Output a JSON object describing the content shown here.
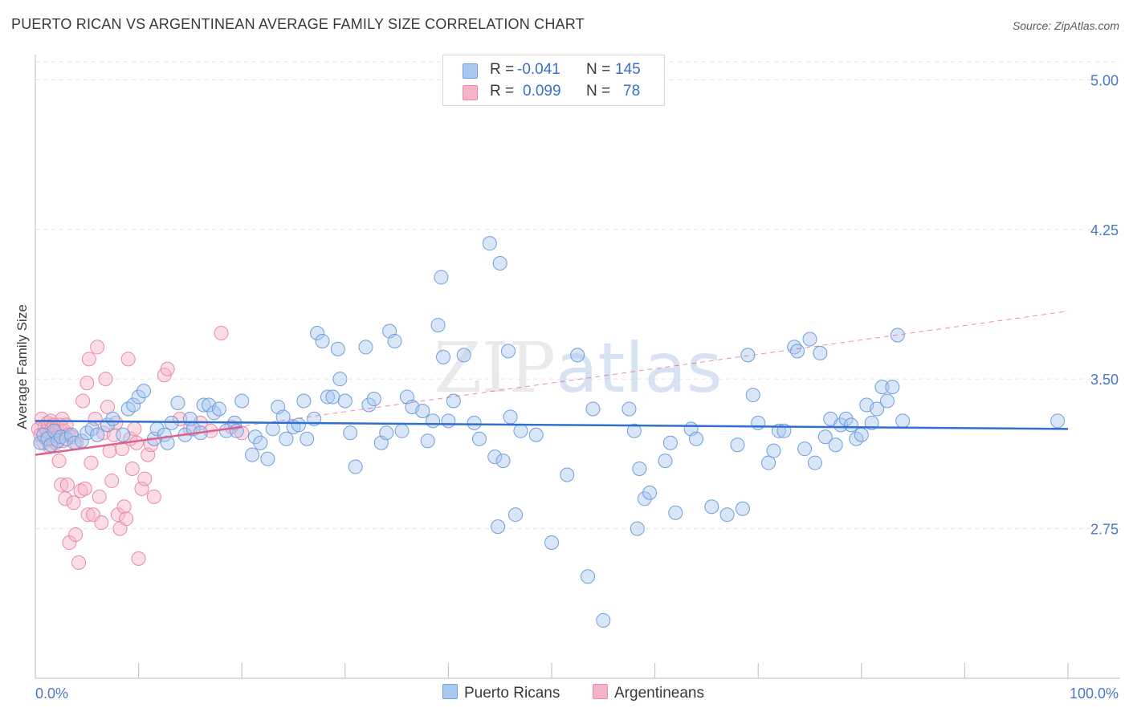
{
  "title": "PUERTO RICAN VS ARGENTINEAN AVERAGE FAMILY SIZE CORRELATION CHART",
  "source": "Source: ZipAtlas.com",
  "watermark": "ZIPatlas",
  "colors": {
    "blue_fill": "#a9c7ef",
    "blue_stroke": "#6f9fdc",
    "blue_line": "#2f6fd1",
    "pink_fill": "#f6b3c8",
    "pink_stroke": "#e88aa9",
    "pink_line": "#e0608c",
    "axis_text": "#4a78c8",
    "grid": "#e3e3e3"
  },
  "legend_top": {
    "rows": [
      {
        "series": "Puerto Ricans",
        "r_label": "R =",
        "r_value": "-0.041",
        "n_label": "N =",
        "n_value": "145"
      },
      {
        "series": "Argentineans",
        "r_label": "R =",
        "r_value": "0.099",
        "n_label": "N =",
        "n_value": "78"
      }
    ]
  },
  "legend_bottom": [
    "Puerto Ricans",
    "Argentineans"
  ],
  "chart_data": {
    "type": "scatter",
    "title": "PUERTO RICAN VS ARGENTINEAN AVERAGE FAMILY SIZE CORRELATION CHART",
    "xlabel": "",
    "ylabel": "Average Family Size",
    "xlim": [
      0,
      100
    ],
    "ylim": [
      2.0,
      5.09
    ],
    "x_tick_labels": [
      "0.0%",
      "100.0%"
    ],
    "y_ticks": [
      2.75,
      3.5,
      4.25,
      5.0
    ],
    "y_tick_labels": [
      "2.75",
      "3.50",
      "4.25",
      "5.00"
    ],
    "grid": true,
    "series": [
      {
        "name": "Puerto Ricans",
        "r": -0.041,
        "n": 145,
        "trend": {
          "x": [
            0,
            100
          ],
          "y": [
            3.29,
            3.25
          ]
        },
        "points": [
          [
            0.5,
            3.18
          ],
          [
            0.8,
            3.22
          ],
          [
            1.2,
            3.2
          ],
          [
            1.5,
            3.17
          ],
          [
            1.8,
            3.24
          ],
          [
            2.2,
            3.19
          ],
          [
            2.5,
            3.21
          ],
          [
            3.0,
            3.2
          ],
          [
            3.5,
            3.22
          ],
          [
            3.8,
            3.18
          ],
          [
            4.5,
            3.19
          ],
          [
            5.0,
            3.23
          ],
          [
            5.5,
            3.25
          ],
          [
            6.0,
            3.22
          ],
          [
            7.0,
            3.27
          ],
          [
            7.5,
            3.3
          ],
          [
            8.5,
            3.22
          ],
          [
            9.0,
            3.35
          ],
          [
            9.5,
            3.37
          ],
          [
            10.0,
            3.41
          ],
          [
            10.5,
            3.44
          ],
          [
            11.5,
            3.2
          ],
          [
            11.8,
            3.25
          ],
          [
            12.5,
            3.22
          ],
          [
            12.8,
            3.18
          ],
          [
            13.2,
            3.28
          ],
          [
            13.8,
            3.38
          ],
          [
            14.5,
            3.22
          ],
          [
            15.0,
            3.3
          ],
          [
            15.3,
            3.25
          ],
          [
            16.0,
            3.23
          ],
          [
            16.3,
            3.37
          ],
          [
            16.8,
            3.37
          ],
          [
            17.3,
            3.33
          ],
          [
            17.8,
            3.35
          ],
          [
            18.5,
            3.24
          ],
          [
            19.3,
            3.28
          ],
          [
            19.5,
            3.24
          ],
          [
            20.0,
            3.39
          ],
          [
            21.0,
            3.12
          ],
          [
            21.3,
            3.21
          ],
          [
            21.8,
            3.18
          ],
          [
            22.5,
            3.1
          ],
          [
            23.0,
            3.25
          ],
          [
            23.5,
            3.36
          ],
          [
            24.0,
            3.31
          ],
          [
            24.3,
            3.2
          ],
          [
            25.0,
            3.26
          ],
          [
            25.5,
            3.27
          ],
          [
            26.0,
            3.39
          ],
          [
            26.3,
            3.2
          ],
          [
            27.0,
            3.3
          ],
          [
            27.3,
            3.73
          ],
          [
            27.8,
            3.69
          ],
          [
            28.3,
            3.41
          ],
          [
            28.8,
            3.41
          ],
          [
            29.3,
            3.65
          ],
          [
            29.5,
            3.5
          ],
          [
            30.0,
            3.39
          ],
          [
            30.5,
            3.23
          ],
          [
            31.0,
            3.06
          ],
          [
            32.0,
            3.66
          ],
          [
            32.3,
            3.37
          ],
          [
            32.8,
            3.4
          ],
          [
            33.5,
            3.18
          ],
          [
            34.0,
            3.23
          ],
          [
            34.3,
            3.74
          ],
          [
            34.8,
            3.69
          ],
          [
            35.5,
            3.24
          ],
          [
            36.0,
            3.41
          ],
          [
            36.5,
            3.36
          ],
          [
            37.5,
            3.34
          ],
          [
            38.0,
            3.19
          ],
          [
            38.5,
            3.29
          ],
          [
            39.0,
            3.77
          ],
          [
            39.3,
            4.01
          ],
          [
            39.5,
            3.61
          ],
          [
            40.0,
            3.29
          ],
          [
            40.5,
            3.39
          ],
          [
            41.5,
            3.62
          ],
          [
            42.5,
            3.28
          ],
          [
            43.0,
            3.2
          ],
          [
            44.0,
            4.18
          ],
          [
            44.5,
            3.11
          ],
          [
            44.8,
            2.76
          ],
          [
            45.0,
            4.08
          ],
          [
            45.3,
            3.09
          ],
          [
            45.8,
            3.64
          ],
          [
            46.0,
            3.31
          ],
          [
            46.5,
            2.82
          ],
          [
            47.0,
            3.24
          ],
          [
            48.5,
            3.22
          ],
          [
            50.0,
            2.68
          ],
          [
            51.5,
            3.02
          ],
          [
            52.5,
            3.62
          ],
          [
            53.5,
            2.51
          ],
          [
            54.0,
            3.35
          ],
          [
            55.0,
            2.29
          ],
          [
            57.5,
            3.35
          ],
          [
            58.0,
            3.24
          ],
          [
            58.3,
            2.75
          ],
          [
            58.5,
            3.05
          ],
          [
            59.0,
            2.9
          ],
          [
            59.5,
            2.93
          ],
          [
            61.0,
            3.09
          ],
          [
            61.5,
            3.18
          ],
          [
            62.0,
            2.83
          ],
          [
            63.5,
            3.25
          ],
          [
            64.0,
            3.2
          ],
          [
            65.5,
            2.86
          ],
          [
            67.0,
            2.82
          ],
          [
            68.0,
            3.17
          ],
          [
            68.5,
            2.85
          ],
          [
            69.0,
            3.62
          ],
          [
            69.5,
            3.42
          ],
          [
            70.0,
            3.28
          ],
          [
            71.0,
            3.08
          ],
          [
            71.5,
            3.14
          ],
          [
            72.0,
            3.24
          ],
          [
            72.5,
            3.24
          ],
          [
            73.5,
            3.66
          ],
          [
            73.8,
            3.64
          ],
          [
            74.5,
            3.15
          ],
          [
            75.0,
            3.7
          ],
          [
            75.5,
            3.08
          ],
          [
            76.0,
            3.63
          ],
          [
            76.5,
            3.21
          ],
          [
            77.0,
            3.3
          ],
          [
            77.5,
            3.17
          ],
          [
            78.0,
            3.27
          ],
          [
            78.5,
            3.3
          ],
          [
            79.0,
            3.27
          ],
          [
            79.5,
            3.2
          ],
          [
            80.0,
            3.22
          ],
          [
            80.5,
            3.37
          ],
          [
            81.0,
            3.28
          ],
          [
            81.5,
            3.35
          ],
          [
            82.0,
            3.46
          ],
          [
            82.5,
            3.39
          ],
          [
            83.0,
            3.46
          ],
          [
            83.5,
            3.72
          ],
          [
            84.0,
            3.29
          ],
          [
            99.0,
            3.29
          ]
        ]
      },
      {
        "name": "Argentineans",
        "r": 0.099,
        "n": 78,
        "trend": {
          "x": [
            0,
            20
          ],
          "y": [
            3.12,
            3.26
          ]
        },
        "trend_extended": {
          "x": [
            0,
            100
          ],
          "y": [
            3.12,
            3.84
          ]
        },
        "points": [
          [
            0.3,
            3.25
          ],
          [
            0.5,
            3.22
          ],
          [
            0.6,
            3.3
          ],
          [
            0.8,
            3.18
          ],
          [
            0.9,
            3.26
          ],
          [
            1.0,
            3.2
          ],
          [
            1.1,
            3.24
          ],
          [
            1.2,
            3.28
          ],
          [
            1.3,
            3.22
          ],
          [
            1.4,
            3.16
          ],
          [
            1.5,
            3.29
          ],
          [
            1.6,
            3.25
          ],
          [
            1.7,
            3.2
          ],
          [
            1.8,
            3.27
          ],
          [
            1.9,
            3.23
          ],
          [
            2.0,
            3.18
          ],
          [
            2.1,
            3.26
          ],
          [
            2.2,
            3.21
          ],
          [
            2.3,
            3.09
          ],
          [
            2.4,
            3.27
          ],
          [
            2.5,
            2.97
          ],
          [
            2.6,
            3.3
          ],
          [
            2.7,
            3.19
          ],
          [
            2.8,
            3.24
          ],
          [
            2.9,
            2.9
          ],
          [
            3.0,
            3.27
          ],
          [
            3.1,
            2.97
          ],
          [
            3.2,
            3.22
          ],
          [
            3.3,
            2.68
          ],
          [
            3.5,
            3.21
          ],
          [
            3.7,
            2.88
          ],
          [
            3.9,
            2.72
          ],
          [
            4.0,
            3.18
          ],
          [
            4.2,
            2.58
          ],
          [
            4.4,
            2.94
          ],
          [
            4.6,
            3.39
          ],
          [
            4.8,
            2.95
          ],
          [
            5.0,
            3.48
          ],
          [
            5.1,
            2.82
          ],
          [
            5.2,
            3.6
          ],
          [
            5.4,
            3.08
          ],
          [
            5.6,
            2.82
          ],
          [
            5.8,
            3.3
          ],
          [
            6.0,
            3.66
          ],
          [
            6.2,
            2.91
          ],
          [
            6.4,
            2.78
          ],
          [
            6.6,
            3.23
          ],
          [
            6.8,
            3.5
          ],
          [
            7.0,
            3.36
          ],
          [
            7.2,
            3.14
          ],
          [
            7.4,
            2.99
          ],
          [
            7.6,
            3.22
          ],
          [
            7.8,
            3.28
          ],
          [
            8.0,
            2.82
          ],
          [
            8.2,
            2.75
          ],
          [
            8.4,
            3.15
          ],
          [
            8.6,
            2.86
          ],
          [
            8.8,
            2.8
          ],
          [
            9.0,
            3.6
          ],
          [
            9.2,
            3.2
          ],
          [
            9.4,
            3.05
          ],
          [
            9.6,
            3.25
          ],
          [
            9.8,
            3.18
          ],
          [
            10.0,
            2.6
          ],
          [
            10.3,
            2.95
          ],
          [
            10.6,
            3.0
          ],
          [
            10.9,
            3.12
          ],
          [
            11.2,
            3.17
          ],
          [
            11.5,
            2.91
          ],
          [
            12.5,
            3.52
          ],
          [
            12.8,
            3.55
          ],
          [
            14.0,
            3.3
          ],
          [
            15.0,
            3.25
          ],
          [
            16.0,
            3.28
          ],
          [
            17.0,
            3.24
          ],
          [
            18.0,
            3.73
          ],
          [
            19.0,
            3.26
          ],
          [
            20.0,
            3.23
          ]
        ]
      }
    ]
  }
}
